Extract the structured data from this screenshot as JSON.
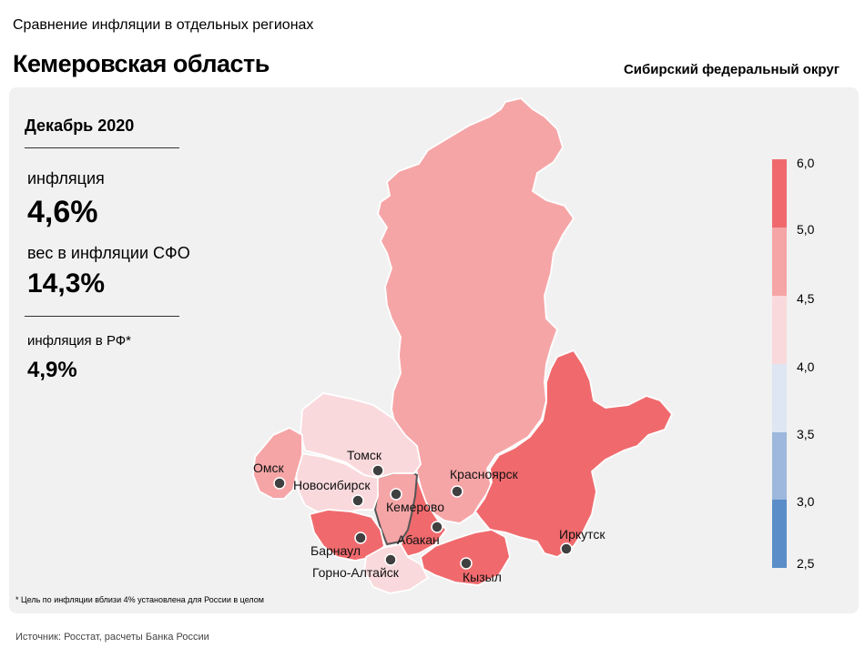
{
  "header": {
    "supertitle": "Сравнение инфляции  в отдельных регионах",
    "title": "Кемеровская область",
    "district": "Сибирский федеральный округ"
  },
  "stats": {
    "period": "Декабрь 2020",
    "inflation_label": "инфляция",
    "inflation_value": "4,6%",
    "weight_label": "вес в инфляции  СФО",
    "weight_value": "14,3%",
    "rf_label": "инфляция  в РФ*",
    "rf_value": "4,9%"
  },
  "legend": {
    "ticks": [
      "6,0",
      "5,0",
      "4,5",
      "4,0",
      "3,5",
      "3,0",
      "2,5"
    ],
    "colors": [
      "#f06a6d",
      "#f6a5a7",
      "#f9d9dc",
      "#dde6f2",
      "#9db8dc",
      "#5b8ec8"
    ]
  },
  "cities": [
    {
      "name": "Омск",
      "color_key": "4.5-5.0"
    },
    {
      "name": "Томск",
      "color_key": "4.0-4.5"
    },
    {
      "name": "Новосибирск",
      "color_key": "4.0-4.5"
    },
    {
      "name": "Кемерово",
      "color_key": "4.5-5.0"
    },
    {
      "name": "Красноярск",
      "color_key": "4.5-5.0"
    },
    {
      "name": "Абакан",
      "color_key": "5.0-6.0"
    },
    {
      "name": "Барнаул",
      "color_key": "5.0-6.0"
    },
    {
      "name": "Горно-Алтайск",
      "color_key": "4.0-4.5"
    },
    {
      "name": "Кызыл",
      "color_key": "5.0-6.0"
    },
    {
      "name": "Иркутск",
      "color_key": "5.0-6.0"
    }
  ],
  "footnote": "* Цель по инфляции вблизи 4% установлена для России в целом",
  "source": "Источник: Росстат, расчеты Банка России"
}
